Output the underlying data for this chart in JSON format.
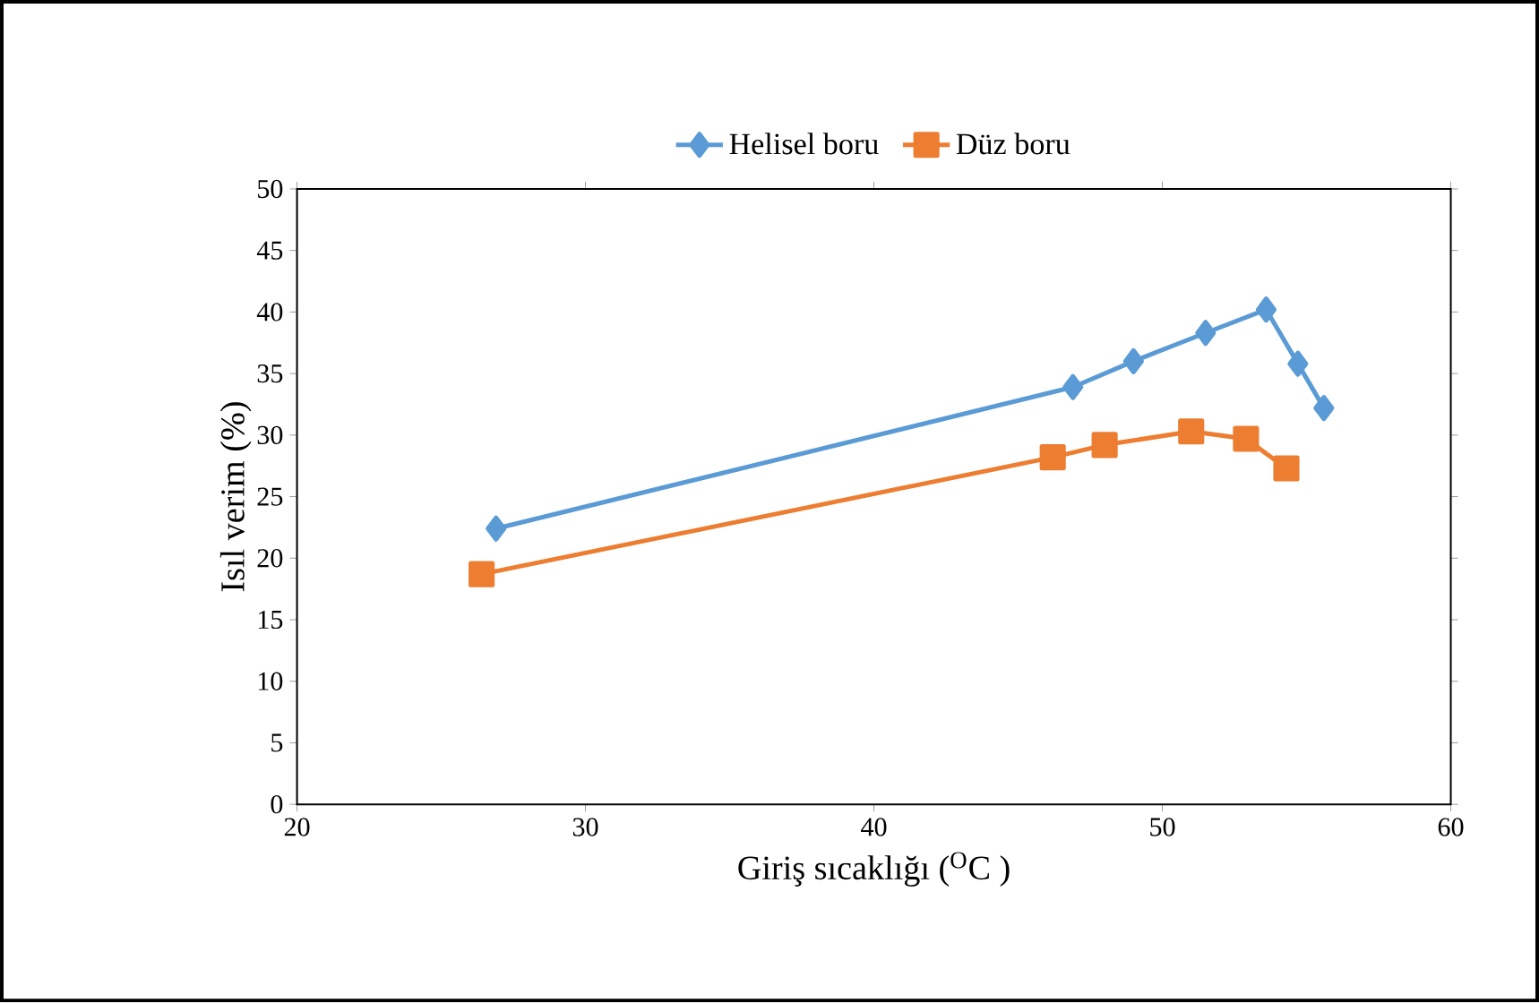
{
  "chart_data": {
    "type": "line",
    "xlabel": "Giriş  sıcaklığı ($^{O}$C )",
    "ylabel": "Isıl verim (%)",
    "xlim": [
      20,
      60
    ],
    "xticks": [
      20,
      30,
      40,
      50,
      60
    ],
    "ylim": [
      0,
      50
    ],
    "yticks": [
      0,
      5,
      10,
      15,
      20,
      25,
      30,
      35,
      40,
      45,
      50
    ],
    "legend": "top",
    "grid": false,
    "line_style": "solid",
    "series": [
      {
        "name": "Helisel boru",
        "color": "#5b9bd5",
        "marker": "diamond",
        "x": [
          26.9,
          46.9,
          49.0,
          51.5,
          53.6,
          54.7,
          55.6
        ],
        "values": [
          22.4,
          33.9,
          36.0,
          38.3,
          40.2,
          35.8,
          32.2
        ]
      },
      {
        "name": "Düz boru",
        "color": "#ed7d31",
        "marker": "square",
        "x": [
          26.4,
          46.2,
          48.0,
          51.0,
          52.9,
          54.3
        ],
        "values": [
          18.7,
          28.2,
          29.2,
          30.3,
          29.7,
          27.3
        ]
      }
    ]
  }
}
